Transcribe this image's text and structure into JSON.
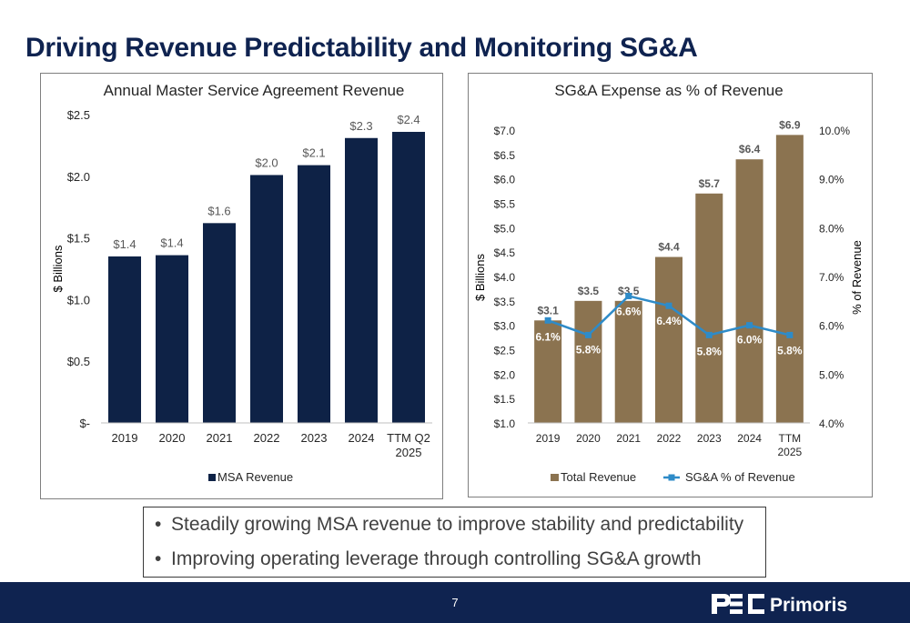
{
  "title": "Driving Revenue Predictability and Monitoring SG&A",
  "chart_data": [
    {
      "type": "bar",
      "title": "Annual Master Service Agreement Revenue",
      "ylabel": "$ Billions",
      "categories": [
        "2019",
        "2020",
        "2021",
        "2022",
        "2023",
        "2024",
        "TTM Q2 2025"
      ],
      "series": [
        {
          "name": "MSA Revenue",
          "values": [
            1.35,
            1.36,
            1.62,
            2.01,
            2.09,
            2.31,
            2.36
          ],
          "labels": [
            "$1.4",
            "$1.4",
            "$1.6",
            "$2.0",
            "$2.1",
            "$2.3",
            "$2.4"
          ]
        }
      ],
      "yticks": [
        "$-",
        "$0.5",
        "$1.0",
        "$1.5",
        "$2.0",
        "$2.5"
      ],
      "ylim": [
        0,
        2.5
      ],
      "legend": "bottom",
      "grid": false,
      "colors": {
        "bar": "#0e2246"
      }
    },
    {
      "type": "bar+line",
      "title": "SG&A Expense as % of Revenue",
      "ylabel": "$ Billions",
      "y2label": "% of Revenue",
      "categories": [
        "2019",
        "2020",
        "2021",
        "2022",
        "2023",
        "2024",
        "TTM 2025"
      ],
      "series": [
        {
          "name": "Total Revenue",
          "type": "bar",
          "axis": "left",
          "values": [
            3.1,
            3.5,
            3.5,
            4.4,
            5.7,
            6.4,
            6.9
          ],
          "labels": [
            "$3.1",
            "$3.5",
            "$3.5",
            "$4.4",
            "$5.7",
            "$6.4",
            "$6.9"
          ]
        },
        {
          "name": "SG&A % of Revenue",
          "type": "line",
          "axis": "right",
          "values": [
            6.1,
            5.8,
            6.6,
            6.4,
            5.8,
            6.0,
            5.8
          ],
          "labels": [
            "6.1%",
            "5.8%",
            "6.6%",
            "6.4%",
            "5.8%",
            "6.0%",
            "5.8%"
          ]
        }
      ],
      "yticks": [
        "$1.0",
        "$1.5",
        "$2.0",
        "$2.5",
        "$3.0",
        "$3.5",
        "$4.0",
        "$4.5",
        "$5.0",
        "$5.5",
        "$6.0",
        "$6.5",
        "$7.0"
      ],
      "ylim": [
        1.0,
        7.0
      ],
      "y2ticks": [
        "4.0%",
        "5.0%",
        "6.0%",
        "7.0%",
        "8.0%",
        "9.0%",
        "10.0%"
      ],
      "y2lim": [
        4.0,
        10.0
      ],
      "legend": "bottom",
      "grid": false,
      "colors": {
        "bar": "#8b7350",
        "line": "#2e8bc8"
      }
    }
  ],
  "bullets": [
    "Steadily growing MSA revenue to improve stability and predictability",
    "Improving operating leverage through controlling SG&A growth"
  ],
  "footer": {
    "page_number": "7",
    "brand": "Primoris",
    "bar_color": "#0f2350"
  }
}
